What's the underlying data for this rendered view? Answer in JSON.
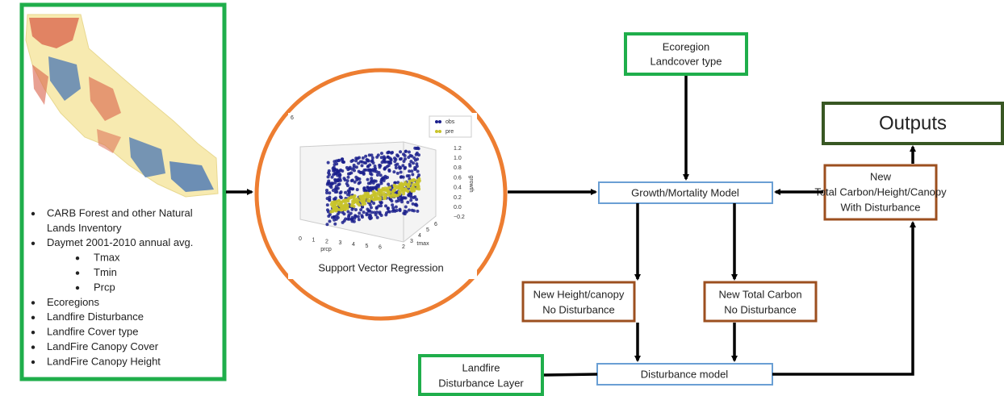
{
  "input_list": [
    {
      "lines": [
        "CARB Forest and other Natural",
        "Lands Inventory"
      ]
    },
    {
      "lines": [
        "Daymet 2001-2010 annual avg."
      ],
      "sub": [
        "Tmax",
        "Tmin",
        "Prcp"
      ]
    },
    {
      "lines": [
        "Ecoregions"
      ]
    },
    {
      "lines": [
        "Landfire Disturbance"
      ]
    },
    {
      "lines": [
        "Landfire Cover type"
      ]
    },
    {
      "lines": [
        "LandFire Canopy Cover"
      ]
    },
    {
      "lines": [
        "LandFire Canopy Height"
      ]
    }
  ],
  "svr": {
    "caption": "Support Vector Regression",
    "plot": {
      "corner_label": "6",
      "legend": [
        "obs",
        "pre"
      ],
      "z_ticks": [
        "1.2",
        "1.0",
        "0.8",
        "0.6",
        "0.4",
        "0.2",
        "0.0",
        "−0.2"
      ],
      "z_label": "growth",
      "x_ticks": [
        "0",
        "1",
        "2",
        "3",
        "4",
        "5",
        "6"
      ],
      "x_label": "prcp",
      "y_ticks": [
        "2",
        "3",
        "4",
        "5",
        "6"
      ],
      "y_label": "tmax"
    }
  },
  "nodes": {
    "ecoregion": [
      "Ecoregion",
      "Landcover type"
    ],
    "growth_model": "Growth/Mortality Model",
    "outputs": "Outputs",
    "new_total": [
      "New",
      "Total Carbon/Height/Canopy",
      "With Disturbance"
    ],
    "new_height": [
      "New Height/canopy",
      "No Disturbance"
    ],
    "new_carbon": [
      "New Total Carbon",
      "No Disturbance"
    ],
    "landfire_layer": [
      "Landfire",
      "Disturbance Layer"
    ],
    "disturbance_model": "Disturbance model"
  }
}
